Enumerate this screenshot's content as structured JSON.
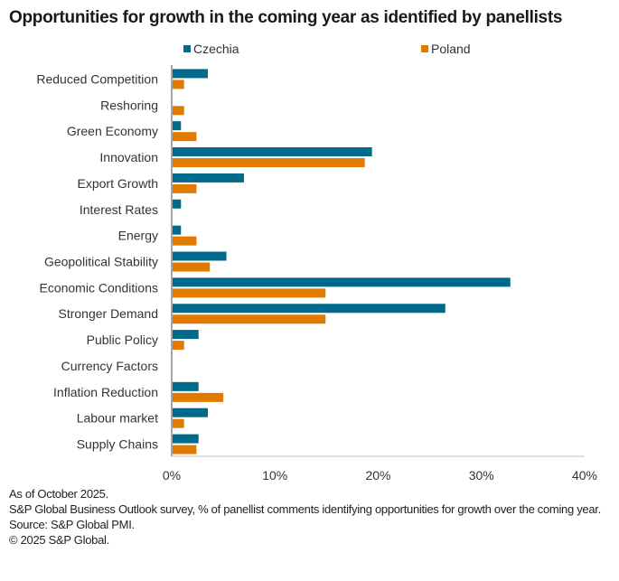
{
  "chart_data": {
    "type": "bar",
    "orientation": "horizontal",
    "title": "Opportunities for growth in the coming year as identified by panellists",
    "xlabel": "",
    "ylabel": "",
    "xlim": [
      0,
      40
    ],
    "x_ticks": [
      0,
      10,
      20,
      30,
      40
    ],
    "x_tick_labels": [
      "0%",
      "10%",
      "20%",
      "30%",
      "40%"
    ],
    "grid": false,
    "legend_position": "top",
    "categories": [
      "Reduced Competition",
      "Reshoring",
      "Green Economy",
      "Innovation",
      "Export Growth",
      "Interest Rates",
      "Energy",
      "Geopolitical Stability",
      "Economic Conditions",
      "Stronger Demand",
      "Public Policy",
      "Currency Factors",
      "Inflation Reduction",
      "Labour market",
      "Supply Chains"
    ],
    "series": [
      {
        "name": "Czechia",
        "color": "#006a8a",
        "values": [
          3.5,
          0,
          0.9,
          19.4,
          7.0,
          0.9,
          0.9,
          5.3,
          32.8,
          26.5,
          2.6,
          0,
          2.6,
          3.5,
          2.6
        ]
      },
      {
        "name": "Poland",
        "color": "#e07b00",
        "values": [
          1.2,
          1.2,
          2.4,
          18.7,
          2.4,
          0,
          2.4,
          3.7,
          14.9,
          14.9,
          1.2,
          0,
          5.0,
          1.2,
          2.4
        ]
      }
    ]
  },
  "footer": {
    "as_of": "As of October 2025.",
    "description": "S&P Global Business Outlook survey, % of panellist comments identifying opportunities for growth over the coming year.",
    "source": "Source: S&P Global PMI.",
    "copyright": "© 2025 S&P Global."
  }
}
